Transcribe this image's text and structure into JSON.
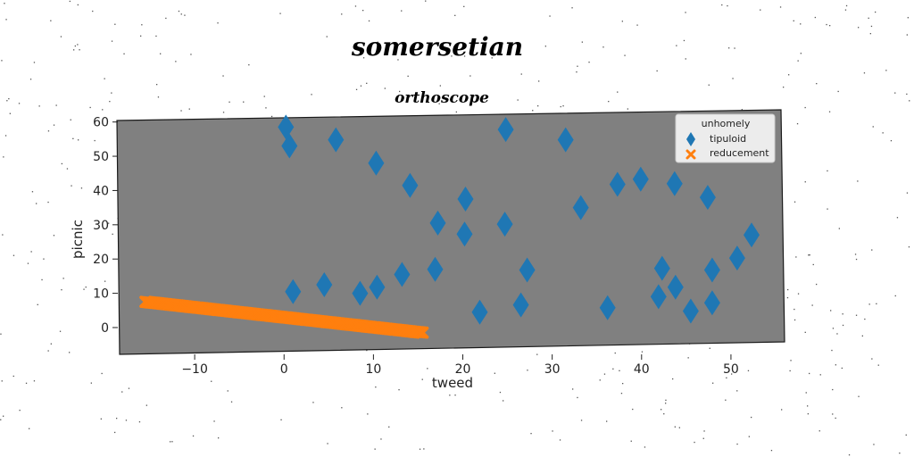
{
  "figure_title": "somersetian",
  "chart_data": {
    "type": "scatter",
    "title": "orthoscope",
    "xlabel": "tweed",
    "ylabel": "picnic",
    "xlim": [
      -18.5,
      55.8
    ],
    "ylim": [
      -6,
      62
    ],
    "xticks": [
      -10,
      0,
      10,
      20,
      30,
      40,
      50
    ],
    "yticks": [
      0,
      10,
      20,
      30,
      40,
      50,
      60
    ],
    "xtick_labels": [
      "−10",
      "0",
      "10",
      "20",
      "30",
      "40",
      "50"
    ],
    "ytick_labels": [
      "0",
      "10",
      "20",
      "30",
      "40",
      "50",
      "60"
    ],
    "grid": false,
    "background": "#808080",
    "legend": {
      "title": "unhomely",
      "placement": "top-right",
      "entries": [
        "tipuloid",
        "reducement"
      ]
    },
    "series": [
      {
        "name": "tipuloid",
        "marker": "diamond",
        "color": "#1f77b4",
        "points": [
          [
            0.2,
            58.5
          ],
          [
            0.6,
            53.0
          ],
          [
            5.8,
            54.8
          ],
          [
            10.3,
            48.0
          ],
          [
            14.1,
            41.5
          ],
          [
            17.2,
            30.5
          ],
          [
            16.9,
            17.0
          ],
          [
            1.0,
            10.5
          ],
          [
            4.5,
            12.5
          ],
          [
            8.5,
            10.0
          ],
          [
            10.4,
            11.8
          ],
          [
            13.2,
            15.5
          ],
          [
            20.3,
            37.5
          ],
          [
            20.2,
            27.3
          ],
          [
            24.8,
            57.8
          ],
          [
            24.7,
            30.2
          ],
          [
            21.9,
            4.5
          ],
          [
            27.2,
            16.8
          ],
          [
            26.5,
            6.6
          ],
          [
            31.5,
            54.8
          ],
          [
            33.2,
            35.0
          ],
          [
            37.3,
            41.8
          ],
          [
            36.2,
            5.8
          ],
          [
            39.9,
            43.3
          ],
          [
            42.3,
            17.3
          ],
          [
            41.9,
            9.0
          ],
          [
            43.7,
            42.0
          ],
          [
            43.8,
            11.8
          ],
          [
            45.5,
            4.8
          ],
          [
            47.4,
            38.0
          ],
          [
            47.9,
            16.8
          ],
          [
            47.9,
            7.2
          ],
          [
            50.7,
            20.3
          ],
          [
            52.3,
            27.0
          ]
        ]
      },
      {
        "name": "reducement",
        "marker": "x",
        "color": "#ff7f0e",
        "line": {
          "x_start": -15.5,
          "y_start": 7.5,
          "x_end": 15.5,
          "y_end": -1.5,
          "count": 180
        }
      }
    ]
  }
}
